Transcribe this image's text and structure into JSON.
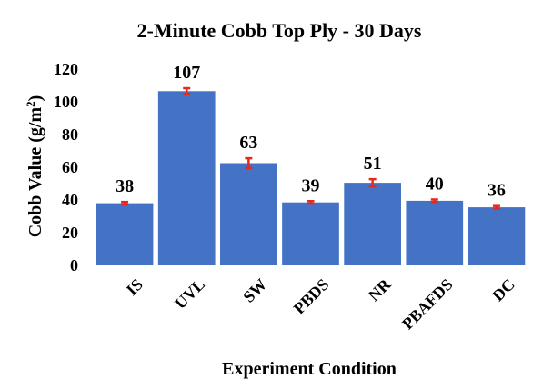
{
  "chart_data": {
    "type": "bar",
    "title": "2-Minute Cobb Top Ply - 30 Days",
    "xlabel": "Experiment Condition",
    "ylabel_main": "Cobb Value (g/m",
    "ylabel_sup": "2",
    "ylabel_tail": ")",
    "ylim": [
      0,
      120
    ],
    "yticks": [
      "0",
      "20",
      "40",
      "60",
      "80",
      "100",
      "120"
    ],
    "categories": [
      "IS",
      "UVL",
      "SW",
      "PBDS",
      "NR",
      "PBAFDS",
      "DC"
    ],
    "values": [
      38,
      106.5,
      62.5,
      38.5,
      50.5,
      39.5,
      35.5
    ],
    "data_labels": [
      "38",
      "107",
      "63",
      "39",
      "51",
      "40",
      "36"
    ],
    "errors": [
      0.8,
      1.8,
      3.0,
      0.8,
      2.2,
      0.8,
      0.8
    ],
    "bar_color": "#4472c4",
    "error_color": "#e8281e",
    "grid": false,
    "legend": "none"
  }
}
